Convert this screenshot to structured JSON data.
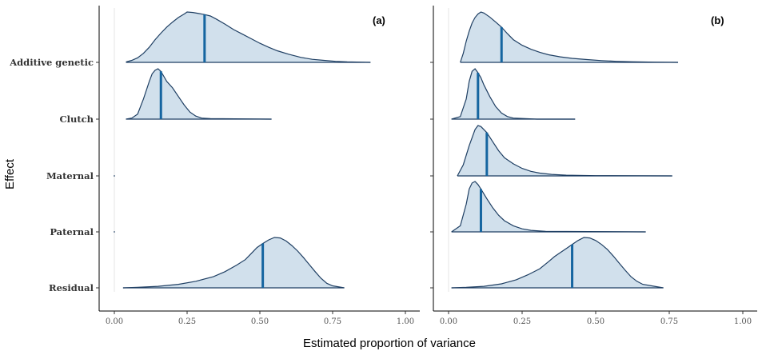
{
  "chart_data": {
    "type": "ridgeline",
    "xlabel": "Estimated proportion of variance",
    "ylabel": "Effect",
    "xlim": [
      0,
      1
    ],
    "xticks": [
      0,
      0.25,
      0.5,
      0.75,
      1
    ],
    "xtick_labels": [
      "0.00",
      "0.25",
      "0.50",
      "0.75",
      "1.00"
    ],
    "categories": [
      "Additive genetic",
      "Clutch",
      "Maternal",
      "Paternal",
      "Residual"
    ],
    "grid": false,
    "fill_color": "#d1e0ec",
    "line_color": "#1f3f63",
    "marker_color": "#1565a0",
    "panels": [
      {
        "tag": "(a)",
        "ridges": [
          {
            "category": "Additive genetic",
            "min": 0.04,
            "max": 0.88,
            "marker": 0.31,
            "density": [
              [
                0.04,
                0.01
              ],
              [
                0.06,
                0.04
              ],
              [
                0.08,
                0.09
              ],
              [
                0.1,
                0.18
              ],
              [
                0.12,
                0.3
              ],
              [
                0.14,
                0.45
              ],
              [
                0.16,
                0.58
              ],
              [
                0.18,
                0.7
              ],
              [
                0.2,
                0.8
              ],
              [
                0.22,
                0.89
              ],
              [
                0.24,
                0.96
              ],
              [
                0.25,
                1.0
              ],
              [
                0.27,
                0.99
              ],
              [
                0.29,
                0.97
              ],
              [
                0.31,
                0.95
              ],
              [
                0.33,
                0.92
              ],
              [
                0.35,
                0.86
              ],
              [
                0.38,
                0.76
              ],
              [
                0.41,
                0.65
              ],
              [
                0.44,
                0.56
              ],
              [
                0.47,
                0.47
              ],
              [
                0.5,
                0.38
              ],
              [
                0.53,
                0.3
              ],
              [
                0.56,
                0.23
              ],
              [
                0.6,
                0.16
              ],
              [
                0.64,
                0.1
              ],
              [
                0.68,
                0.06
              ],
              [
                0.72,
                0.04
              ],
              [
                0.76,
                0.02
              ],
              [
                0.8,
                0.01
              ],
              [
                0.88,
                0.0
              ]
            ]
          },
          {
            "category": "Clutch",
            "min": 0.04,
            "max": 0.54,
            "marker": 0.16,
            "density": [
              [
                0.04,
                0.0
              ],
              [
                0.06,
                0.02
              ],
              [
                0.08,
                0.1
              ],
              [
                0.1,
                0.4
              ],
              [
                0.12,
                0.75
              ],
              [
                0.13,
                0.9
              ],
              [
                0.14,
                0.97
              ],
              [
                0.15,
                1.0
              ],
              [
                0.16,
                0.95
              ],
              [
                0.17,
                0.85
              ],
              [
                0.18,
                0.75
              ],
              [
                0.2,
                0.62
              ],
              [
                0.22,
                0.45
              ],
              [
                0.24,
                0.28
              ],
              [
                0.26,
                0.14
              ],
              [
                0.28,
                0.06
              ],
              [
                0.3,
                0.02
              ],
              [
                0.33,
                0.01
              ],
              [
                0.54,
                0.0
              ]
            ]
          },
          {
            "category": "Maternal",
            "min": 0.0,
            "max": 0.0,
            "marker": null,
            "density": []
          },
          {
            "category": "Paternal",
            "min": 0.0,
            "max": 0.0,
            "marker": null,
            "density": []
          },
          {
            "category": "Residual",
            "min": 0.03,
            "max": 0.79,
            "marker": 0.51,
            "density": [
              [
                0.03,
                0.0
              ],
              [
                0.08,
                0.01
              ],
              [
                0.15,
                0.03
              ],
              [
                0.22,
                0.07
              ],
              [
                0.28,
                0.13
              ],
              [
                0.34,
                0.22
              ],
              [
                0.38,
                0.32
              ],
              [
                0.42,
                0.45
              ],
              [
                0.45,
                0.56
              ],
              [
                0.47,
                0.68
              ],
              [
                0.49,
                0.8
              ],
              [
                0.51,
                0.88
              ],
              [
                0.53,
                0.95
              ],
              [
                0.55,
                1.0
              ],
              [
                0.57,
                0.99
              ],
              [
                0.59,
                0.93
              ],
              [
                0.61,
                0.84
              ],
              [
                0.63,
                0.73
              ],
              [
                0.65,
                0.6
              ],
              [
                0.67,
                0.46
              ],
              [
                0.69,
                0.32
              ],
              [
                0.71,
                0.19
              ],
              [
                0.73,
                0.09
              ],
              [
                0.75,
                0.04
              ],
              [
                0.79,
                0.0
              ]
            ]
          }
        ]
      },
      {
        "tag": "(b)",
        "ridges": [
          {
            "category": "Additive genetic",
            "min": 0.04,
            "max": 0.78,
            "marker": 0.18,
            "density": [
              [
                0.04,
                0.0
              ],
              [
                0.05,
                0.18
              ],
              [
                0.06,
                0.42
              ],
              [
                0.07,
                0.62
              ],
              [
                0.08,
                0.78
              ],
              [
                0.09,
                0.89
              ],
              [
                0.1,
                0.96
              ],
              [
                0.11,
                1.0
              ],
              [
                0.12,
                0.98
              ],
              [
                0.14,
                0.9
              ],
              [
                0.16,
                0.8
              ],
              [
                0.18,
                0.7
              ],
              [
                0.2,
                0.57
              ],
              [
                0.22,
                0.45
              ],
              [
                0.25,
                0.34
              ],
              [
                0.28,
                0.26
              ],
              [
                0.31,
                0.2
              ],
              [
                0.34,
                0.15
              ],
              [
                0.38,
                0.11
              ],
              [
                0.42,
                0.08
              ],
              [
                0.47,
                0.055
              ],
              [
                0.52,
                0.035
              ],
              [
                0.57,
                0.02
              ],
              [
                0.62,
                0.012
              ],
              [
                0.7,
                0.005
              ],
              [
                0.78,
                0.0
              ]
            ]
          },
          {
            "category": "Clutch",
            "min": 0.01,
            "max": 0.43,
            "marker": 0.1,
            "density": [
              [
                0.01,
                0.0
              ],
              [
                0.04,
                0.05
              ],
              [
                0.06,
                0.4
              ],
              [
                0.07,
                0.75
              ],
              [
                0.08,
                0.95
              ],
              [
                0.09,
                1.0
              ],
              [
                0.1,
                0.92
              ],
              [
                0.11,
                0.82
              ],
              [
                0.12,
                0.68
              ],
              [
                0.14,
                0.45
              ],
              [
                0.16,
                0.25
              ],
              [
                0.18,
                0.12
              ],
              [
                0.2,
                0.05
              ],
              [
                0.22,
                0.02
              ],
              [
                0.3,
                0.0
              ],
              [
                0.43,
                0.0
              ]
            ]
          },
          {
            "category": "Maternal",
            "min": 0.03,
            "max": 0.76,
            "marker": 0.13,
            "density": [
              [
                0.03,
                0.0
              ],
              [
                0.05,
                0.22
              ],
              [
                0.07,
                0.6
              ],
              [
                0.09,
                0.92
              ],
              [
                0.1,
                1.0
              ],
              [
                0.11,
                0.98
              ],
              [
                0.13,
                0.86
              ],
              [
                0.15,
                0.68
              ],
              [
                0.17,
                0.5
              ],
              [
                0.19,
                0.36
              ],
              [
                0.22,
                0.24
              ],
              [
                0.25,
                0.15
              ],
              [
                0.28,
                0.09
              ],
              [
                0.31,
                0.055
              ],
              [
                0.35,
                0.03
              ],
              [
                0.4,
                0.015
              ],
              [
                0.5,
                0.005
              ],
              [
                0.76,
                0.0
              ]
            ]
          },
          {
            "category": "Paternal",
            "min": 0.01,
            "max": 0.67,
            "marker": 0.11,
            "density": [
              [
                0.01,
                0.0
              ],
              [
                0.04,
                0.12
              ],
              [
                0.06,
                0.55
              ],
              [
                0.07,
                0.85
              ],
              [
                0.08,
                0.97
              ],
              [
                0.09,
                1.0
              ],
              [
                0.1,
                0.94
              ],
              [
                0.11,
                0.85
              ],
              [
                0.13,
                0.66
              ],
              [
                0.15,
                0.48
              ],
              [
                0.17,
                0.33
              ],
              [
                0.19,
                0.22
              ],
              [
                0.22,
                0.12
              ],
              [
                0.25,
                0.06
              ],
              [
                0.28,
                0.03
              ],
              [
                0.33,
                0.01
              ],
              [
                0.67,
                0.0
              ]
            ]
          },
          {
            "category": "Residual",
            "min": 0.01,
            "max": 0.73,
            "marker": 0.42,
            "density": [
              [
                0.01,
                0.0
              ],
              [
                0.06,
                0.01
              ],
              [
                0.12,
                0.03
              ],
              [
                0.18,
                0.08
              ],
              [
                0.23,
                0.16
              ],
              [
                0.27,
                0.26
              ],
              [
                0.31,
                0.38
              ],
              [
                0.34,
                0.52
              ],
              [
                0.36,
                0.62
              ],
              [
                0.38,
                0.7
              ],
              [
                0.4,
                0.78
              ],
              [
                0.42,
                0.86
              ],
              [
                0.44,
                0.94
              ],
              [
                0.46,
                1.0
              ],
              [
                0.48,
                0.99
              ],
              [
                0.5,
                0.94
              ],
              [
                0.52,
                0.86
              ],
              [
                0.54,
                0.76
              ],
              [
                0.56,
                0.63
              ],
              [
                0.58,
                0.49
              ],
              [
                0.6,
                0.35
              ],
              [
                0.62,
                0.22
              ],
              [
                0.64,
                0.13
              ],
              [
                0.66,
                0.07
              ],
              [
                0.7,
                0.03
              ],
              [
                0.73,
                0.0
              ]
            ]
          }
        ]
      }
    ]
  }
}
